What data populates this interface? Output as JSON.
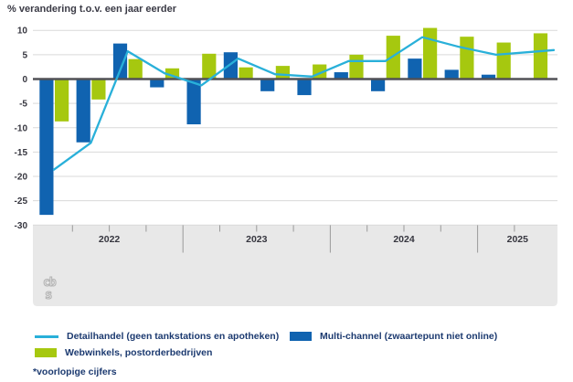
{
  "title": "% verandering t.o.v. een jaar eerder",
  "footnote": "*voorlopige cijfers",
  "colors": {
    "line": "#29b0d9",
    "bar_blue": "#1063b0",
    "bar_green": "#a6c80f",
    "grid": "#d9d9d9",
    "zero_line": "#515156",
    "band": "#e8e8e8",
    "tick": "#9a9a9a",
    "axis_text": "#36363f",
    "legend_text": "#1c3a70",
    "logo": "#b2b2b2"
  },
  "legend": [
    {
      "label": "Detailhandel (geen tankstations en apotheken)",
      "swatch": "line",
      "color": "#29b0d9",
      "key": "detailhandel"
    },
    {
      "label": "Multi-channel (zwaartepunt niet online)",
      "swatch": "rect",
      "color": "#1063b0",
      "key": "multi-channel"
    },
    {
      "label": "Webwinkels, postorderbedrijven",
      "swatch": "rect",
      "color": "#a6c80f",
      "key": "webwinkels"
    }
  ],
  "chart_data": {
    "type": "bar",
    "title": "% verandering t.o.v. een jaar eerder",
    "categories": [
      "2022-K1",
      "2022-K2",
      "2022-K3",
      "2022-K4",
      "2023-K1",
      "2023-K2",
      "2023-K3",
      "2023-K4",
      "2024-K1",
      "2024-K2",
      "2024-K3",
      "2024-K4",
      "2025-K1",
      "2025-K2"
    ],
    "year_groups": [
      {
        "label": "2022",
        "quarters": 4
      },
      {
        "label": "2023",
        "quarters": 4
      },
      {
        "label": "2024",
        "quarters": 4
      },
      {
        "label": "2025",
        "quarters": 2
      }
    ],
    "yticks": [
      10,
      5,
      0,
      -5,
      -10,
      -15,
      -20,
      -25,
      -30
    ],
    "ylim": [
      -30,
      11
    ],
    "grid": true,
    "legend_position": "bottom",
    "series": [
      {
        "name": "Detailhandel (geen tankstations en apotheken)",
        "type": "line",
        "color": "#29b0d9",
        "values": [
          -18.6,
          -13.1,
          5.7,
          1.2,
          -1.3,
          4.2,
          1.0,
          0.5,
          3.7,
          3.7,
          8.6,
          6.6,
          5.0,
          5.6
        ]
      },
      {
        "name": "Multi-channel (zwaartepunt niet online)",
        "type": "bar",
        "color": "#1063b0",
        "values": [
          -27.9,
          -13.0,
          7.3,
          -1.7,
          -9.3,
          5.5,
          -2.5,
          -3.3,
          1.4,
          -2.5,
          4.2,
          1.9,
          0.9,
          null
        ]
      },
      {
        "name": "Webwinkels, postorderbedrijven",
        "type": "bar",
        "color": "#a6c80f",
        "values": [
          -8.7,
          -4.2,
          4.1,
          2.2,
          5.2,
          2.4,
          2.7,
          3.0,
          5.0,
          8.9,
          10.5,
          8.7,
          7.5,
          9.4
        ]
      }
    ]
  }
}
